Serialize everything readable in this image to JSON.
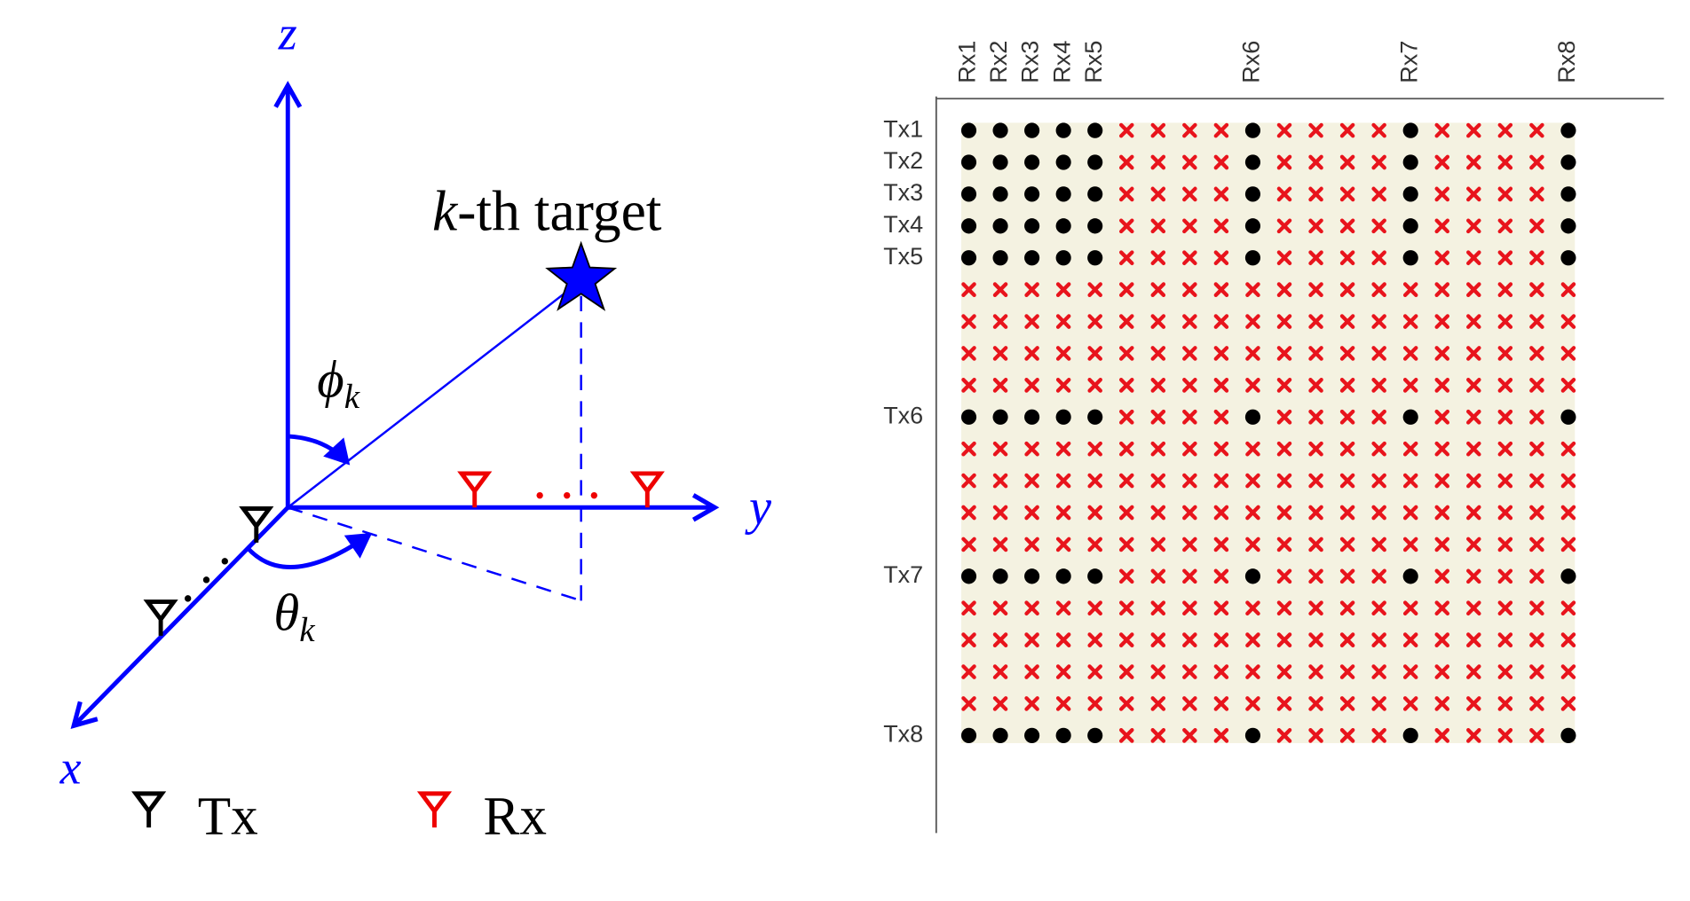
{
  "left_panel": {
    "axes": {
      "z": "z",
      "y": "y",
      "x": "x"
    },
    "target": {
      "variable": "k",
      "text": "-th target"
    },
    "elevation": {
      "symbol": "ϕ",
      "subscript": "k"
    },
    "azimuth": {
      "symbol": "θ",
      "subscript": "k"
    },
    "legend": [
      "Tx",
      "Rx"
    ]
  },
  "right_panel": {
    "tx_labels": [
      "Tx1",
      "Tx2",
      "Tx3",
      "Tx4",
      "Tx5",
      null,
      null,
      null,
      null,
      "Tx6",
      null,
      null,
      null,
      null,
      "Tx7",
      null,
      null,
      null,
      null,
      "Tx8"
    ],
    "rx_labels": [
      "Rx1",
      "Rx2",
      "Rx3",
      "Rx4",
      "Rx5",
      null,
      null,
      null,
      null,
      "Rx6",
      null,
      null,
      null,
      null,
      "Rx7",
      null,
      null,
      null,
      null,
      "Rx8"
    ]
  }
}
